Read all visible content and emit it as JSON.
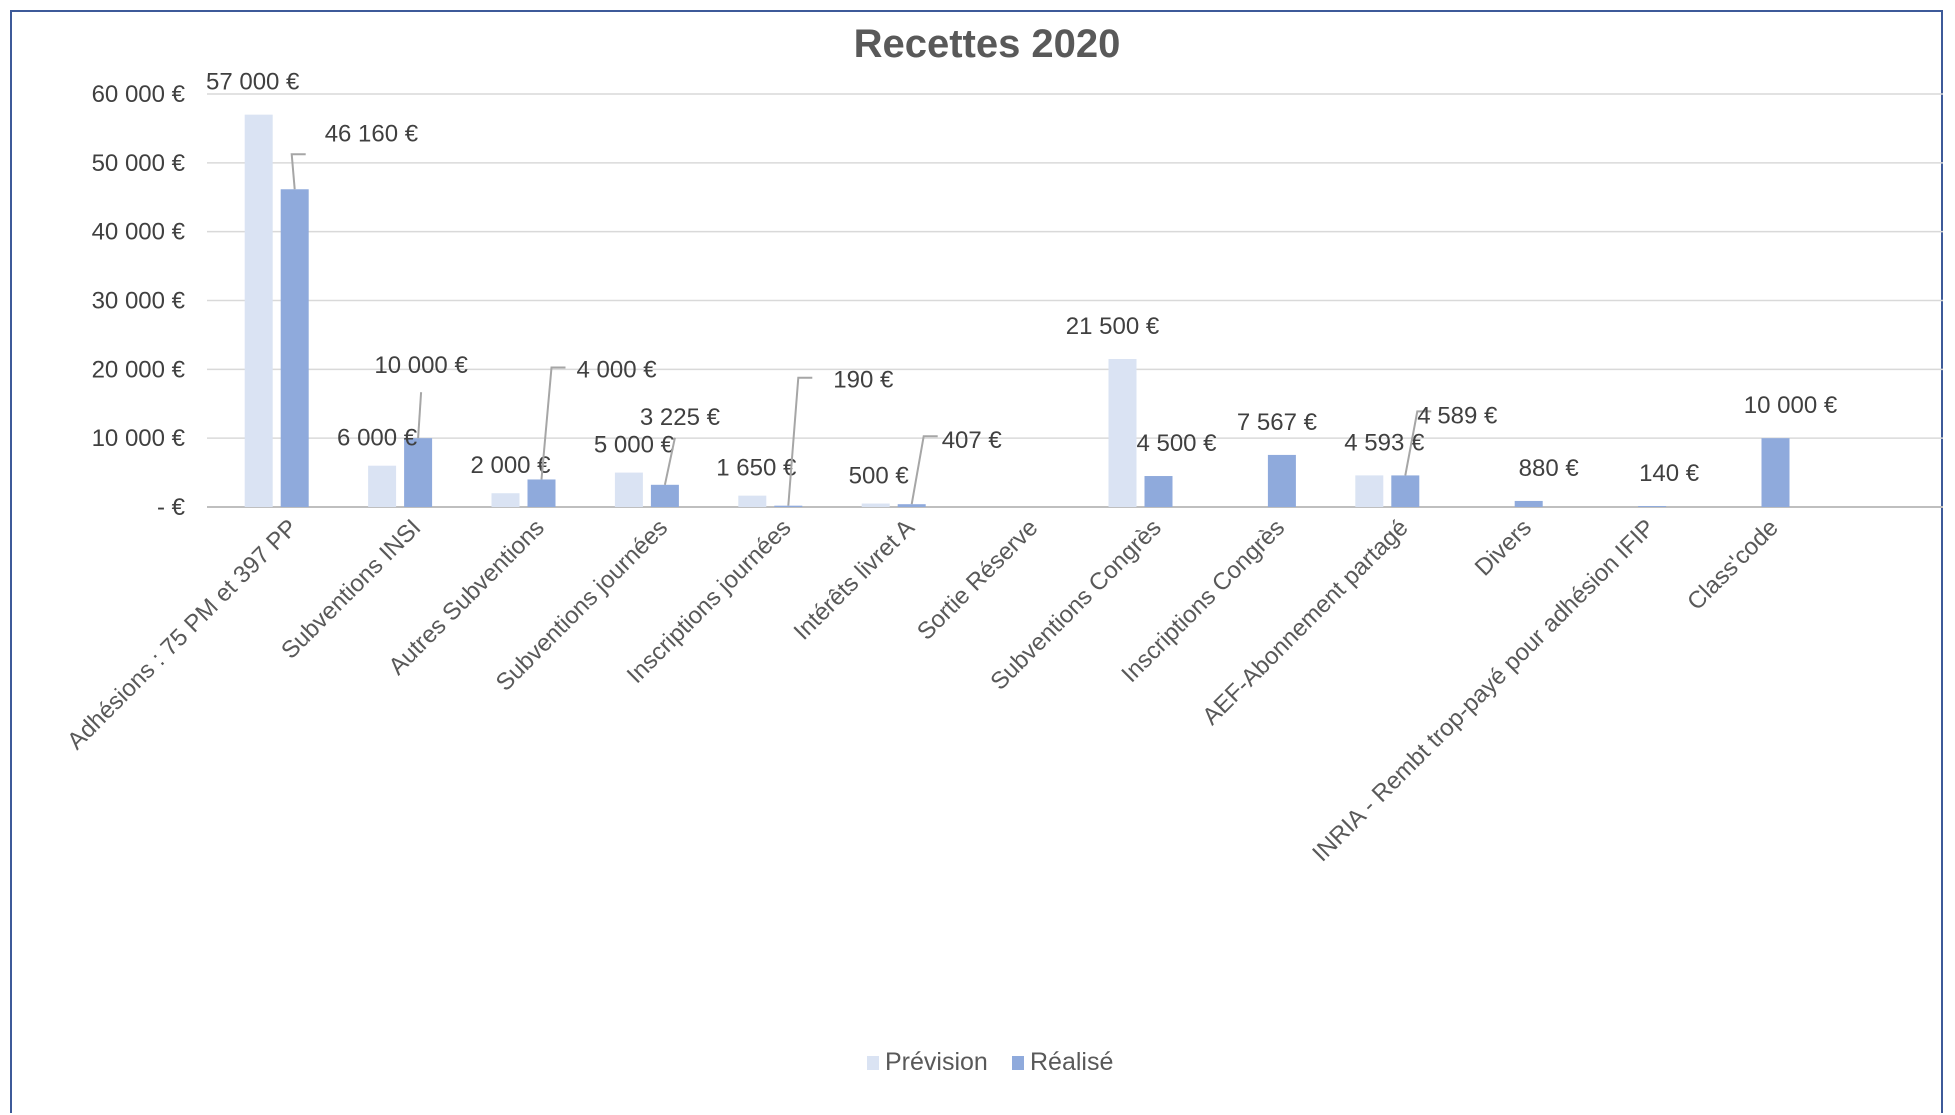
{
  "chart_data": {
    "type": "bar",
    "title": "Recettes 2020",
    "categories": [
      "Adhésions : 75 PM et 397 PP",
      "Subventions INSI",
      "Autres Subventions",
      "Subventions journées",
      "Inscriptions journées",
      "Intérêts livret A",
      "Sortie Réserve",
      "Subventions Congrès",
      "Inscriptions Congrès",
      "AEF-Abonnement partagé",
      "Divers",
      "INRIA - Rembt trop-payé pour adhésion IFIP",
      "Class'code"
    ],
    "series": [
      {
        "name": "Prévision",
        "color": "#dae3f3",
        "values": [
          57000,
          6000,
          2000,
          5000,
          1650,
          500,
          null,
          21500,
          null,
          4593,
          null,
          null,
          null
        ],
        "labels": [
          "57 000 €",
          "6 000 €",
          "2 000 €",
          "5 000 €",
          "1 650 €",
          "500 €",
          null,
          "21 500 €",
          null,
          "4 593 €",
          null,
          null,
          null
        ]
      },
      {
        "name": "Réalisé",
        "color": "#8faadc",
        "values": [
          46160,
          10000,
          4000,
          3225,
          190,
          407,
          null,
          4500,
          7567,
          4589,
          880,
          140,
          10000
        ],
        "labels": [
          "46 160 €",
          "10 000 €",
          "4 000 €",
          "3 225 €",
          "190 €",
          "407 €",
          null,
          "4 500 €",
          "7 567 €",
          "4 589 €",
          "880 €",
          "140 €",
          "10 000 €"
        ]
      }
    ],
    "ylim": [
      0,
      60000
    ],
    "yticks": [
      0,
      10000,
      20000,
      30000,
      40000,
      50000,
      60000
    ],
    "ytick_labels": [
      "-  €",
      "10 000 €",
      "20 000 €",
      "30 000 €",
      "40 000 €",
      "50 000 €",
      "60 000 €"
    ],
    "xlabel": "",
    "ylabel": "",
    "grid": true,
    "legend": "bottom"
  }
}
